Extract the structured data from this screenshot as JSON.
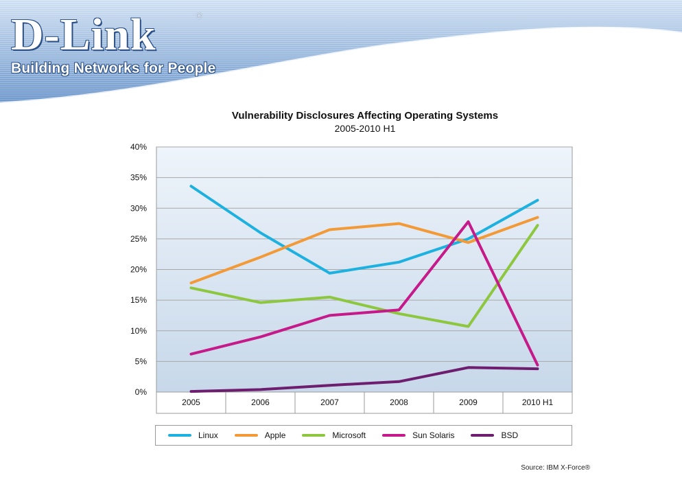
{
  "header": {
    "logo_text": "D-Link",
    "registered_mark": "®",
    "tagline": "Building Networks for People"
  },
  "colors": {
    "banner_top": "#b9d3ec",
    "banner_bottom": "#5f8cc4",
    "plot_bg_top": "#edf3f9",
    "plot_bg_bottom": "#c9d9ea"
  },
  "chart_data": {
    "type": "line",
    "title": "Vulnerability Disclosures Affecting Operating Systems",
    "subtitle": "2005-2010 H1",
    "xlabel": "",
    "ylabel": "",
    "categories": [
      "2005",
      "2006",
      "2007",
      "2008",
      "2009",
      "2010 H1"
    ],
    "ylim": [
      0,
      40
    ],
    "yticks": [
      0,
      5,
      10,
      15,
      20,
      25,
      30,
      35,
      40
    ],
    "ytick_labels": [
      "0%",
      "5%",
      "10%",
      "15%",
      "20%",
      "25%",
      "30%",
      "35%",
      "40%"
    ],
    "grid": true,
    "legend_position": "bottom",
    "series": [
      {
        "name": "Linux",
        "color": "#1eb1e0",
        "values": [
          33.6,
          26.0,
          19.4,
          21.2,
          25.0,
          31.3
        ]
      },
      {
        "name": "Apple",
        "color": "#f29a38",
        "values": [
          17.8,
          22.0,
          26.5,
          27.5,
          24.4,
          28.5
        ]
      },
      {
        "name": "Microsoft",
        "color": "#8dc63f",
        "values": [
          17.0,
          14.6,
          15.5,
          12.8,
          10.7,
          27.2
        ]
      },
      {
        "name": "Sun Solaris",
        "color": "#c51a8a",
        "values": [
          6.2,
          9.0,
          12.5,
          13.4,
          27.8,
          4.4
        ]
      },
      {
        "name": "BSD",
        "color": "#6d1e6e",
        "values": [
          0.1,
          0.4,
          1.1,
          1.7,
          4.0,
          3.8
        ]
      }
    ],
    "source": "Source: IBM X-Force®"
  }
}
